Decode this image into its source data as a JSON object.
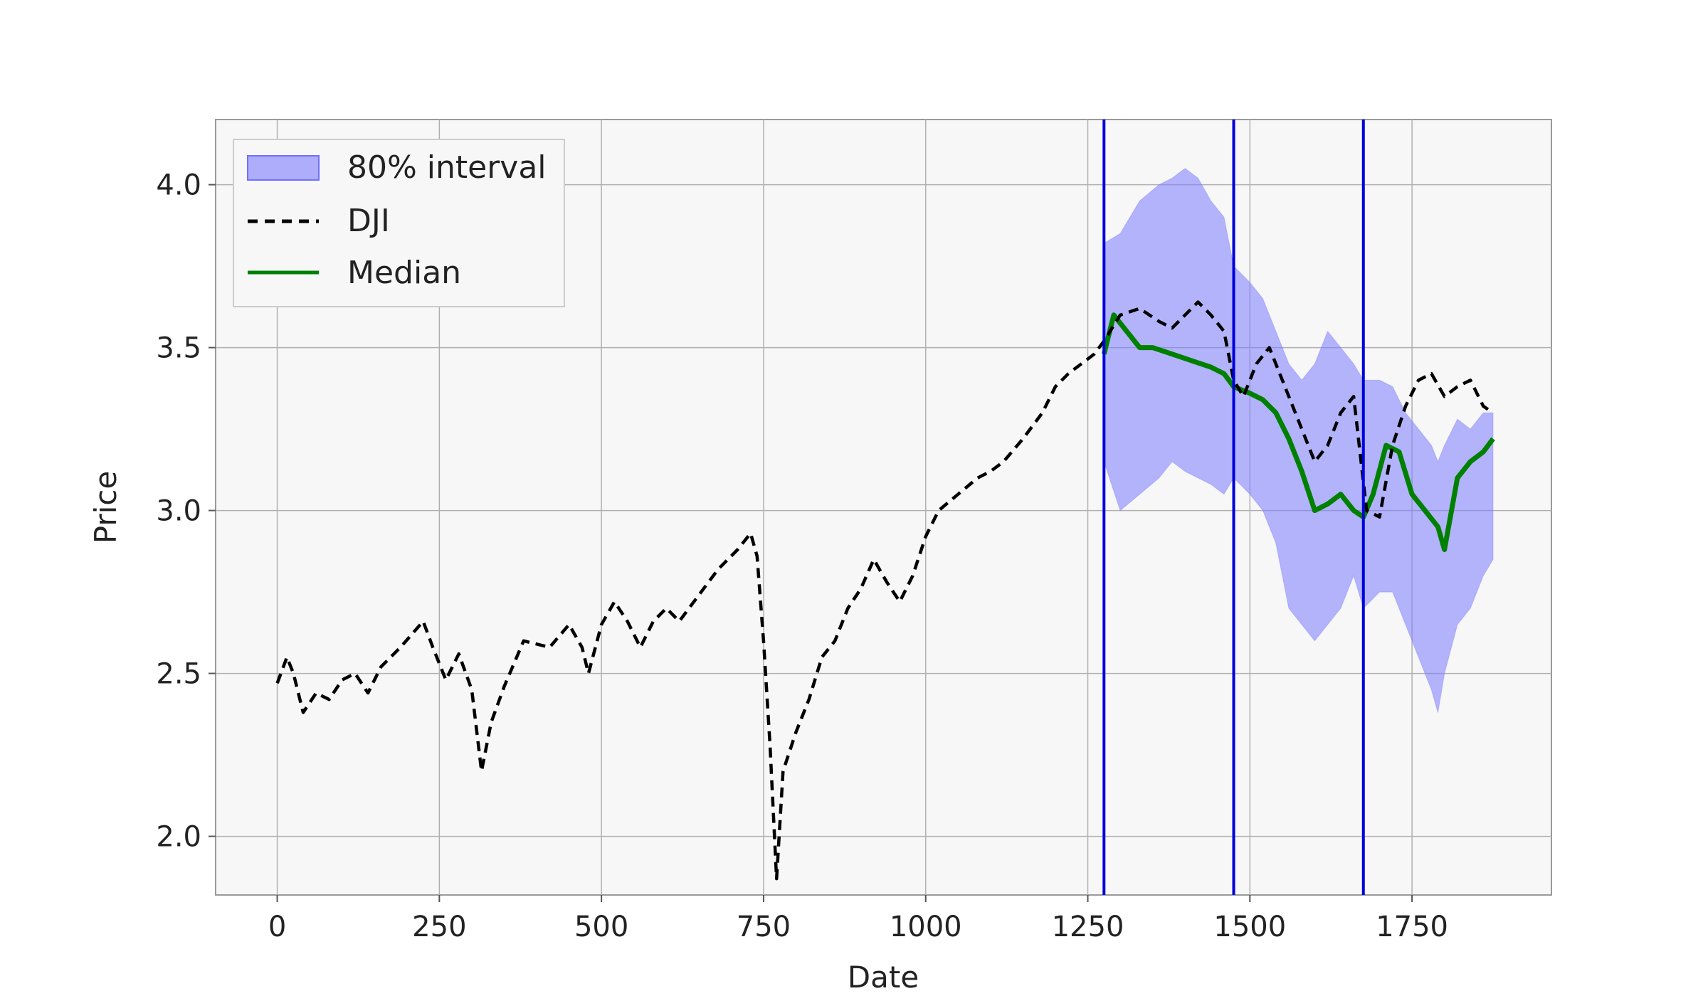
{
  "chart_data": {
    "type": "line",
    "title": "",
    "xlabel": "Date",
    "ylabel": "Price",
    "xlim": [
      -95,
      1965
    ],
    "ylim": [
      1.82,
      4.2
    ],
    "x_ticks": [
      0,
      250,
      500,
      750,
      1000,
      1250,
      1500,
      1750
    ],
    "y_ticks": [
      2.0,
      2.5,
      3.0,
      3.5,
      4.0
    ],
    "x_tick_labels": [
      "0",
      "250",
      "500",
      "750",
      "1000",
      "1250",
      "1500",
      "1750"
    ],
    "y_tick_labels": [
      "2.0",
      "2.5",
      "3.0",
      "3.5",
      "4.0"
    ],
    "grid": true,
    "legend_position": "top-left",
    "legend": [
      "80% interval",
      "DJI",
      "Median"
    ],
    "vertical_lines": [
      1275,
      1475,
      1675
    ],
    "colors": {
      "background": "#f7f7f7",
      "grid": "#b0b0b0",
      "band": "#7b7bff",
      "dji": "#000000",
      "median": "#008000",
      "vlines": "#0000dd"
    },
    "series": [
      {
        "name": "DJI",
        "style": "dashed",
        "x": [
          0,
          15,
          25,
          40,
          60,
          80,
          100,
          120,
          140,
          160,
          190,
          225,
          240,
          260,
          280,
          300,
          315,
          330,
          350,
          380,
          420,
          450,
          470,
          480,
          500,
          520,
          540,
          560,
          580,
          600,
          620,
          650,
          680,
          710,
          730,
          740,
          750,
          760,
          770,
          780,
          800,
          820,
          840,
          860,
          880,
          900,
          920,
          940,
          960,
          980,
          1000,
          1020,
          1050,
          1080,
          1100,
          1120,
          1150,
          1180,
          1200,
          1220,
          1240,
          1260,
          1275,
          1300,
          1330,
          1360,
          1380,
          1400,
          1420,
          1440,
          1460,
          1475,
          1490,
          1510,
          1530,
          1550,
          1570,
          1590,
          1600,
          1620,
          1640,
          1660,
          1680,
          1700,
          1720,
          1740,
          1760,
          1780,
          1800,
          1820,
          1840,
          1860,
          1875
        ],
        "y": [
          2.47,
          2.55,
          2.5,
          2.38,
          2.44,
          2.42,
          2.48,
          2.5,
          2.44,
          2.52,
          2.58,
          2.66,
          2.58,
          2.48,
          2.56,
          2.45,
          2.2,
          2.35,
          2.46,
          2.6,
          2.58,
          2.65,
          2.58,
          2.5,
          2.65,
          2.72,
          2.66,
          2.58,
          2.66,
          2.7,
          2.66,
          2.74,
          2.82,
          2.88,
          2.93,
          2.86,
          2.6,
          2.28,
          1.87,
          2.2,
          2.32,
          2.42,
          2.55,
          2.6,
          2.7,
          2.76,
          2.85,
          2.78,
          2.72,
          2.8,
          2.92,
          3.0,
          3.05,
          3.1,
          3.12,
          3.15,
          3.22,
          3.3,
          3.38,
          3.42,
          3.45,
          3.48,
          3.52,
          3.6,
          3.62,
          3.58,
          3.56,
          3.6,
          3.64,
          3.6,
          3.55,
          3.4,
          3.35,
          3.45,
          3.5,
          3.4,
          3.3,
          3.2,
          3.15,
          3.2,
          3.3,
          3.35,
          3.0,
          2.98,
          3.2,
          3.32,
          3.4,
          3.42,
          3.35,
          3.38,
          3.4,
          3.32,
          3.3
        ]
      },
      {
        "name": "Median",
        "style": "solid",
        "x": [
          1275,
          1290,
          1310,
          1330,
          1350,
          1380,
          1410,
          1440,
          1460,
          1475,
          1500,
          1520,
          1540,
          1560,
          1580,
          1600,
          1620,
          1640,
          1660,
          1675,
          1690,
          1710,
          1730,
          1750,
          1770,
          1790,
          1800,
          1820,
          1840,
          1860,
          1875
        ],
        "y": [
          3.48,
          3.6,
          3.55,
          3.5,
          3.5,
          3.48,
          3.46,
          3.44,
          3.42,
          3.38,
          3.36,
          3.34,
          3.3,
          3.22,
          3.12,
          3.0,
          3.02,
          3.05,
          3.0,
          2.98,
          3.05,
          3.2,
          3.18,
          3.05,
          3.0,
          2.95,
          2.88,
          3.1,
          3.15,
          3.18,
          3.22
        ]
      },
      {
        "name": "80% interval",
        "style": "band",
        "x": [
          1275,
          1300,
          1330,
          1360,
          1380,
          1400,
          1420,
          1440,
          1460,
          1475,
          1500,
          1520,
          1540,
          1560,
          1580,
          1600,
          1620,
          1640,
          1660,
          1675,
          1700,
          1720,
          1740,
          1760,
          1780,
          1790,
          1800,
          1820,
          1840,
          1860,
          1875
        ],
        "lower": [
          3.15,
          3.0,
          3.05,
          3.1,
          3.15,
          3.12,
          3.1,
          3.08,
          3.05,
          3.1,
          3.05,
          3.0,
          2.9,
          2.7,
          2.65,
          2.6,
          2.65,
          2.7,
          2.8,
          2.7,
          2.75,
          2.75,
          2.65,
          2.55,
          2.45,
          2.38,
          2.5,
          2.65,
          2.7,
          2.8,
          2.85
        ],
        "upper": [
          3.82,
          3.85,
          3.95,
          4.0,
          4.02,
          4.05,
          4.02,
          3.95,
          3.9,
          3.75,
          3.7,
          3.65,
          3.55,
          3.45,
          3.4,
          3.45,
          3.55,
          3.5,
          3.45,
          3.4,
          3.4,
          3.38,
          3.3,
          3.25,
          3.2,
          3.15,
          3.2,
          3.28,
          3.25,
          3.3,
          3.3
        ]
      }
    ]
  }
}
